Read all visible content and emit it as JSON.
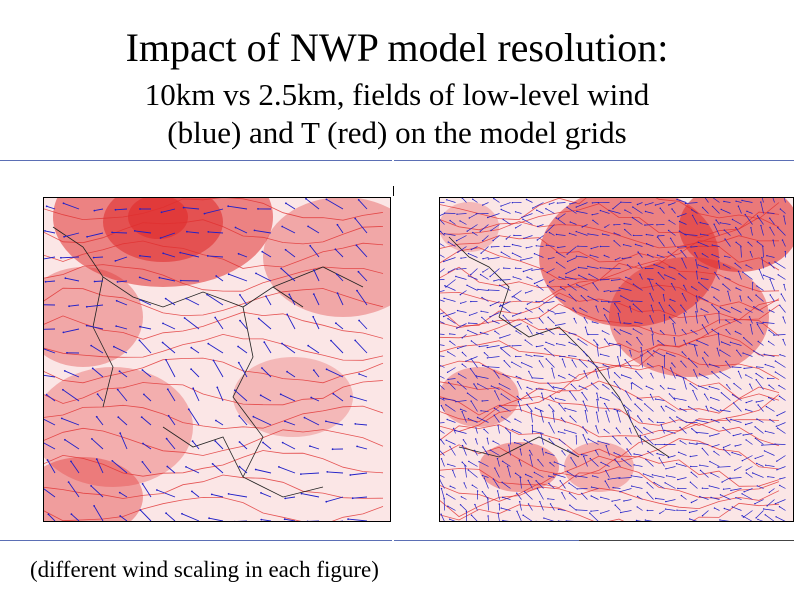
{
  "slide": {
    "title": "Impact of NWP model resolution:",
    "subtitle_line1": "10km vs 2.5km, fields of low-level wind",
    "subtitle_line2": "(blue) and T (red) on the model grids",
    "caption": "(different wind scaling in each figure)"
  },
  "colors": {
    "rule": "#5b6fb5",
    "temperature": "#e03030",
    "wind": "#2020c8",
    "border": "#000000"
  },
  "figures": [
    {
      "resolution": "10km"
    },
    {
      "resolution": "2.5km"
    }
  ]
}
